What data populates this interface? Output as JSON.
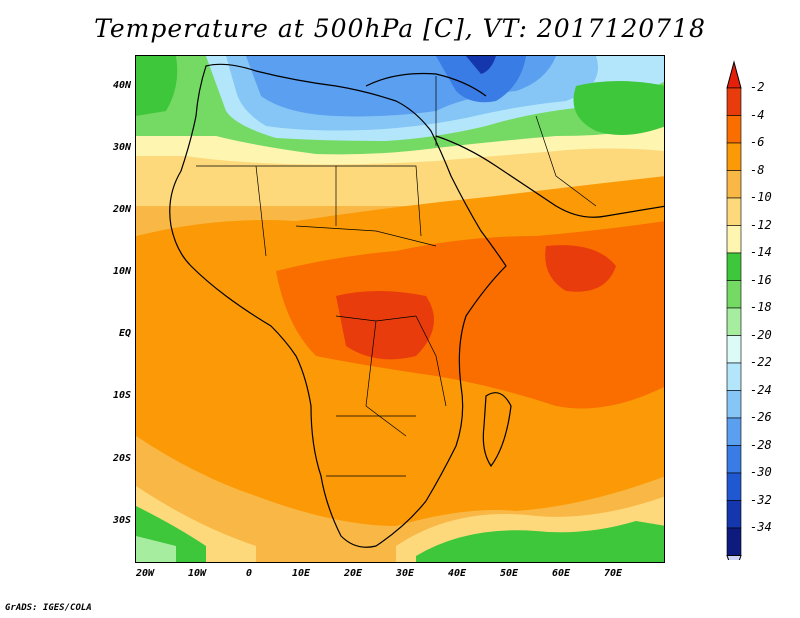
{
  "title": "Temperature at 500hPa [C], VT: 2017120718",
  "footer": "GrADS: IGES/COLA",
  "axes": {
    "lat_labels": [
      "40N",
      "30N",
      "20N",
      "10N",
      "EQ",
      "10S",
      "20S",
      "30S"
    ],
    "lon_labels": [
      "20W",
      "10W",
      "0",
      "10E",
      "20E",
      "30E",
      "40E",
      "50E",
      "60E",
      "70E"
    ]
  },
  "colorbar": {
    "labels": [
      "-2",
      "-4",
      "-6",
      "-8",
      "-10",
      "-12",
      "-14",
      "-16",
      "-18",
      "-20",
      "-22",
      "-24",
      "-26",
      "-28",
      "-30",
      "-32",
      "-34"
    ],
    "colors": [
      "#e83c0c",
      "#fa6e00",
      "#fb9a06",
      "#f9b846",
      "#fdd97c",
      "#fdf5b0",
      "#3fc73c",
      "#74da64",
      "#a6eda0",
      "#dcfbf7",
      "#b4e6fb",
      "#86c6f6",
      "#5b9ff0",
      "#3a7ce5",
      "#2058d2",
      "#1537ad",
      "#0d1a7e"
    ],
    "top_arrow_color": "#e4200b",
    "bottom_arrow_color": "#d0d4f6"
  }
}
